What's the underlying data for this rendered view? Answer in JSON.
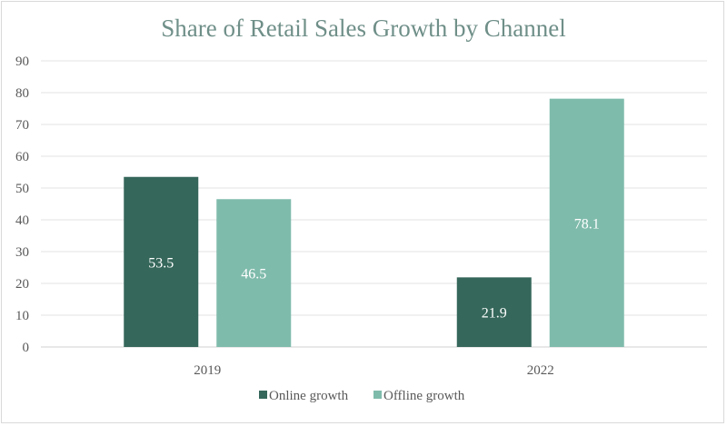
{
  "chart_data": {
    "type": "bar",
    "title": "Share of Retail Sales Growth by Channel",
    "categories": [
      "2019",
      "2022"
    ],
    "series": [
      {
        "name": "Online growth",
        "values": [
          53.5,
          21.9
        ],
        "color": "#35675a"
      },
      {
        "name": "Offline growth",
        "values": [
          46.5,
          78.1
        ],
        "color": "#7fbbab"
      }
    ],
    "ylim": [
      0,
      90
    ],
    "yticks": [
      "0",
      "10",
      "20",
      "30",
      "40",
      "50",
      "60",
      "70",
      "80",
      "90"
    ],
    "value_labels": [
      [
        "53.5",
        "21.9"
      ],
      [
        "46.5",
        "78.1"
      ]
    ],
    "grid": true,
    "legend_position": "bottom"
  }
}
